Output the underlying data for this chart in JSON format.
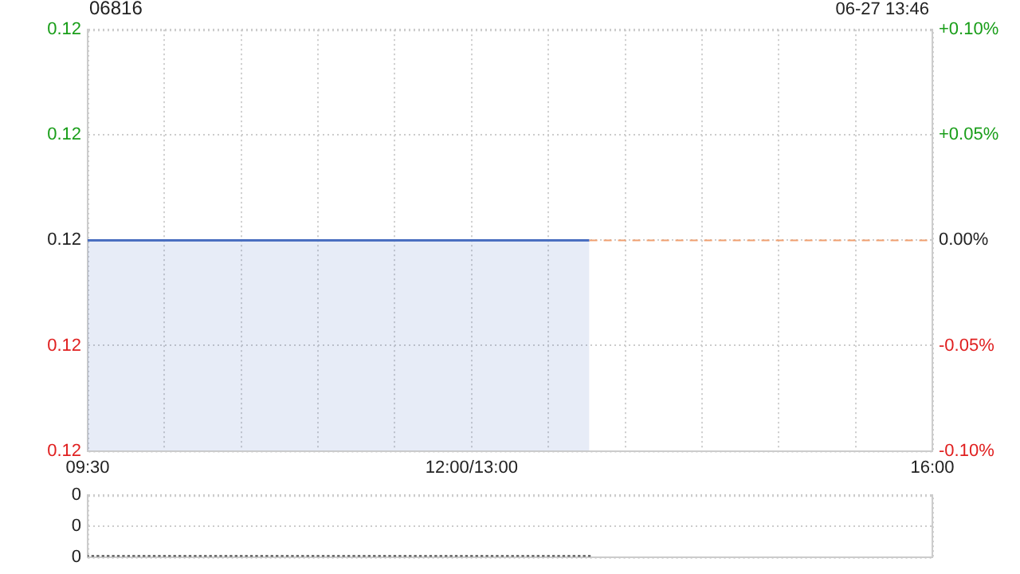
{
  "chart_data": [
    {
      "type": "area",
      "title": "06816",
      "annotations": [
        "06-27 13:46"
      ],
      "categories": [
        "09:30",
        null,
        null,
        null,
        null,
        null,
        null,
        null,
        null,
        null,
        null,
        null,
        null,
        null,
        null,
        null,
        null,
        null,
        null,
        null,
        null,
        null,
        null,
        null,
        null,
        null,
        null,
        null,
        null,
        null,
        null,
        null,
        null,
        null,
        null,
        null,
        null,
        null,
        null,
        null,
        null,
        null,
        null,
        null,
        null,
        null,
        null,
        null,
        null,
        null,
        null,
        null,
        null,
        null,
        null,
        null,
        null,
        null,
        null,
        null,
        null,
        null,
        null,
        null,
        null,
        null,
        null,
        null,
        null,
        null,
        null,
        null,
        null,
        null,
        null,
        "12:00/13:00",
        null,
        null,
        null,
        null,
        null,
        null,
        null,
        null,
        null,
        null,
        null,
        null,
        null,
        null,
        null,
        null,
        null,
        null,
        null,
        null,
        null,
        null,
        null,
        null,
        null,
        null,
        null,
        null,
        null,
        null,
        null,
        null,
        null,
        null,
        null,
        null,
        null,
        null,
        null,
        null,
        null,
        null,
        null,
        null,
        null,
        null,
        null,
        null,
        null,
        null,
        null,
        null,
        null,
        null,
        null,
        null,
        null,
        null,
        null,
        null,
        null,
        null,
        null,
        null,
        null,
        null,
        null,
        null,
        null,
        null,
        null,
        null,
        null,
        null,
        null,
        null,
        null,
        null,
        null,
        null,
        null,
        null,
        null,
        null,
        null,
        null,
        null,
        null,
        null,
        "16:00"
      ],
      "series": [
        {
          "color": "#4a6fc0",
          "values": [
            0.12,
            0.12,
            0.12,
            0.12,
            0.12,
            0.12,
            0.12,
            0.12,
            0.12,
            0.12,
            0.12,
            0.12,
            0.12,
            0.12,
            0.12,
            0.12,
            0.12,
            0.12,
            0.12,
            0.12,
            0.12,
            0.12,
            0.12,
            0.12,
            0.12,
            0.12,
            0.12,
            0.12,
            0.12,
            0.12,
            0.12,
            0.12,
            0.12,
            0.12,
            0.12,
            0.12,
            0.12,
            0.12,
            0.12,
            0.12,
            0.12,
            0.12,
            0.12,
            0.12,
            0.12,
            0.12,
            0.12,
            0.12,
            0.12,
            0.12,
            0.12,
            0.12,
            0.12,
            0.12,
            0.12,
            0.12,
            0.12,
            0.12,
            0.12,
            0.12,
            0.12,
            0.12,
            0.12,
            0.12,
            0.12,
            0.12,
            0.12,
            0.12,
            0.12,
            0.12,
            0.12,
            0.12,
            0.12,
            0.12,
            0.12,
            0.12,
            0.12,
            0.12,
            0.12,
            0.12,
            0.12,
            0.12,
            0.12,
            0.12,
            0.12,
            0.12,
            0.12,
            0.12,
            0.12,
            0.12,
            0.12,
            0.12,
            0.12,
            0.12,
            0.12,
            0.12,
            0.12,
            0.12,
            0.12,
            null,
            null,
            null,
            null,
            null,
            null,
            null,
            null,
            null,
            null,
            null,
            null,
            null,
            null,
            null,
            null,
            null,
            null,
            null,
            null,
            null,
            null,
            null,
            null,
            null,
            null,
            null,
            null,
            null,
            null,
            null,
            null,
            null,
            null,
            null,
            null,
            null,
            null,
            null,
            null,
            null,
            null,
            null,
            null,
            null,
            null,
            null,
            null,
            null,
            null,
            null,
            null,
            null,
            null,
            null,
            null,
            null,
            null,
            null,
            null,
            null,
            null,
            null,
            null,
            null,
            null,
            null
          ]
        }
      ],
      "ylim": [
        0.11988,
        0.12012
      ],
      "yticks": [
        {
          "value": 0.11988,
          "label": "0.12"
        },
        {
          "value": 0.11994,
          "label": "0.12"
        },
        {
          "value": 0.12,
          "label": "0.12"
        },
        {
          "value": 0.12006,
          "label": "0.12"
        },
        {
          "value": 0.12012,
          "label": "0.12"
        }
      ],
      "y2lim": [
        -0.1,
        0.1
      ],
      "y2ticks": [
        {
          "value": -0.1,
          "label": "-0.10%"
        },
        {
          "value": -0.05,
          "label": "-0.05%"
        },
        {
          "value": 0,
          "label": "0.00%"
        },
        {
          "value": 0.05,
          "label": "+0.05%"
        },
        {
          "value": 0.1,
          "label": "+0.10%"
        }
      ],
      "ref_lines": [
        {
          "axis": "y2",
          "value": 0,
          "color": "#f0a070",
          "line_style": "dashed"
        }
      ],
      "grid": true,
      "legend": false,
      "marker": "none",
      "line_style": "solid"
    },
    {
      "type": "bar",
      "categories": [
        null,
        null,
        null,
        null,
        null,
        null,
        null,
        null,
        null,
        null,
        null,
        null,
        null,
        null,
        null,
        null,
        null,
        null,
        null,
        null,
        null,
        null,
        null,
        null,
        null,
        null,
        null,
        null,
        null,
        null,
        null,
        null,
        null,
        null,
        null,
        null,
        null,
        null,
        null,
        null,
        null,
        null,
        null,
        null,
        null,
        null,
        null,
        null,
        null,
        null,
        null,
        null,
        null,
        null,
        null,
        null,
        null,
        null,
        null,
        null,
        null,
        null,
        null,
        null,
        null,
        null,
        null,
        null,
        null,
        null,
        null,
        null,
        null,
        null,
        null,
        null,
        null,
        null,
        null,
        null,
        null,
        null,
        null,
        null,
        null,
        null,
        null,
        null,
        null,
        null,
        null,
        null,
        null,
        null,
        null,
        null,
        null,
        null,
        null,
        null,
        null,
        null,
        null,
        null,
        null,
        null,
        null,
        null,
        null,
        null,
        null,
        null,
        null,
        null,
        null,
        null,
        null,
        null,
        null,
        null,
        null,
        null,
        null,
        null,
        null,
        null,
        null,
        null,
        null,
        null,
        null,
        null,
        null,
        null,
        null,
        null,
        null,
        null,
        null,
        null,
        null,
        null,
        null,
        null,
        null,
        null,
        null,
        null,
        null,
        null,
        null,
        null,
        null,
        null,
        null,
        null,
        null,
        null,
        null,
        null,
        null,
        null,
        null,
        null,
        null,
        null
      ],
      "series": [
        {
          "color": "#555555",
          "values": [
            0,
            0,
            0,
            0,
            0,
            0,
            0,
            0,
            0,
            0,
            0,
            0,
            0,
            0,
            0,
            0,
            0,
            0,
            0,
            0,
            0,
            0,
            0,
            0,
            0,
            0,
            0,
            0,
            0,
            0,
            0,
            0,
            0,
            0,
            0,
            0,
            0,
            0,
            0,
            0,
            0,
            0,
            0,
            0,
            0,
            0,
            0,
            0,
            0,
            0,
            0,
            0,
            0,
            0,
            0,
            0,
            0,
            0,
            0,
            0,
            0,
            0,
            0,
            0,
            0,
            0,
            0,
            0,
            0,
            0,
            0,
            0,
            0,
            0,
            0,
            0,
            0,
            0,
            0,
            0,
            0,
            0,
            0,
            0,
            0,
            0,
            0,
            0,
            0,
            0,
            0,
            0,
            0,
            0,
            0,
            0,
            0,
            0,
            0,
            null,
            null,
            null,
            null,
            null,
            null,
            null,
            null,
            null,
            null,
            null,
            null,
            null,
            null,
            null,
            null,
            null,
            null,
            null,
            null,
            null,
            null,
            null,
            null,
            null,
            null,
            null,
            null,
            null,
            null,
            null,
            null,
            null,
            null,
            null,
            null,
            null,
            null,
            null,
            null,
            null,
            null,
            null,
            null,
            null,
            null,
            null,
            null,
            null,
            null,
            null,
            null,
            null,
            null,
            null,
            null,
            null,
            null,
            null,
            null,
            null,
            null,
            null,
            null,
            null,
            null,
            null
          ]
        }
      ],
      "ylim": [
        0,
        0.4
      ],
      "yticks": [
        {
          "value": 0,
          "label": "0"
        },
        {
          "value": 0.2,
          "label": "0"
        },
        {
          "value": 0.4,
          "label": "0"
        }
      ],
      "grid": "y",
      "tick_labels": "y",
      "legend": false
    }
  ]
}
